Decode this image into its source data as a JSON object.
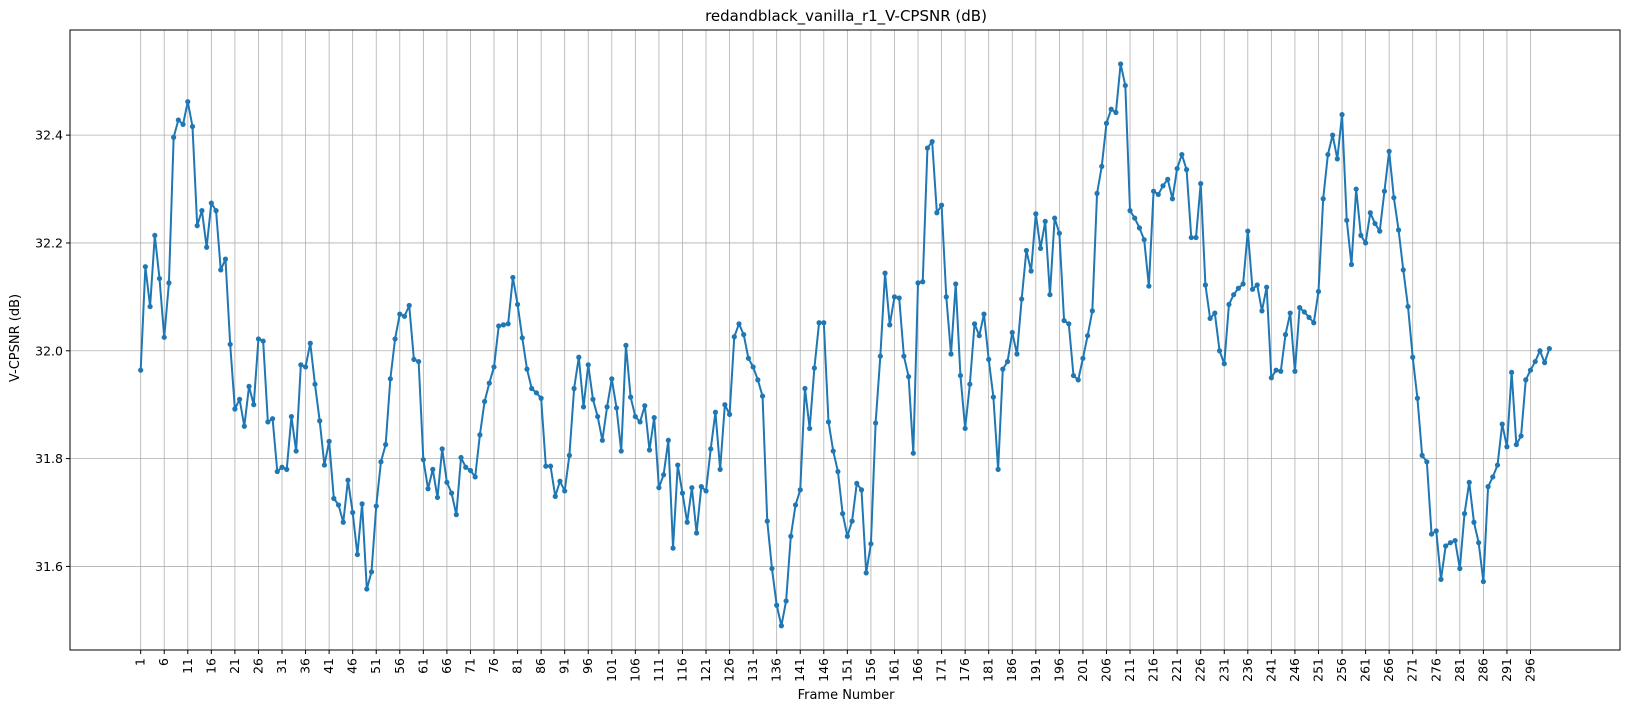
{
  "chart_data": {
    "type": "line",
    "title": "redandblack_vanilla_r1_V-CPSNR (dB)",
    "xlabel": "Frame Number",
    "ylabel": "V-CPSNR (dB)",
    "xlim": [
      -14,
      315
    ],
    "ylim": [
      31.445,
      32.595
    ],
    "yticks": [
      "31.6",
      "31.8",
      "32.0",
      "32.2",
      "32.4"
    ],
    "xticks": [
      "1",
      "6",
      "11",
      "16",
      "21",
      "26",
      "31",
      "36",
      "41",
      "46",
      "51",
      "56",
      "61",
      "66",
      "71",
      "76",
      "81",
      "86",
      "91",
      "96",
      "101",
      "106",
      "111",
      "116",
      "121",
      "126",
      "131",
      "136",
      "141",
      "146",
      "151",
      "156",
      "161",
      "166",
      "171",
      "176",
      "181",
      "186",
      "191",
      "196",
      "201",
      "206",
      "211",
      "216",
      "221",
      "226",
      "231",
      "236",
      "241",
      "246",
      "251",
      "256",
      "261",
      "266",
      "271",
      "276",
      "281",
      "286",
      "291",
      "296"
    ],
    "grid": true,
    "marker": "circle",
    "series": [
      {
        "color": "#1f77b4",
        "x_start": 1,
        "values": [
          31.964,
          32.156,
          32.082,
          32.214,
          32.134,
          32.025,
          32.126,
          32.396,
          32.428,
          32.42,
          32.462,
          32.416,
          32.232,
          32.26,
          32.192,
          32.274,
          32.26,
          32.15,
          32.17,
          32.012,
          31.892,
          31.91,
          31.86,
          31.934,
          31.9,
          32.022,
          32.018,
          31.868,
          31.874,
          31.776,
          31.784,
          31.78,
          31.878,
          31.814,
          31.974,
          31.97,
          32.014,
          31.938,
          31.87,
          31.788,
          31.832,
          31.726,
          31.714,
          31.682,
          31.76,
          31.7,
          31.622,
          31.716,
          31.558,
          31.59,
          31.712,
          31.794,
          31.826,
          31.948,
          32.022,
          32.068,
          32.064,
          32.084,
          31.984,
          31.98,
          31.798,
          31.744,
          31.78,
          31.728,
          31.818,
          31.756,
          31.736,
          31.696,
          31.802,
          31.784,
          31.778,
          31.766,
          31.844,
          31.906,
          31.94,
          31.97,
          32.046,
          32.048,
          32.05,
          32.136,
          32.086,
          32.024,
          31.966,
          31.93,
          31.922,
          31.912,
          31.786,
          31.786,
          31.73,
          31.758,
          31.74,
          31.806,
          31.93,
          31.988,
          31.896,
          31.974,
          31.91,
          31.878,
          31.834,
          31.896,
          31.948,
          31.894,
          31.814,
          32.01,
          31.914,
          31.878,
          31.868,
          31.898,
          31.816,
          31.876,
          31.746,
          31.77,
          31.834,
          31.634,
          31.788,
          31.736,
          31.682,
          31.746,
          31.662,
          31.748,
          31.74,
          31.818,
          31.886,
          31.78,
          31.9,
          31.882,
          32.026,
          32.05,
          32.03,
          31.986,
          31.97,
          31.946,
          31.916,
          31.684,
          31.596,
          31.528,
          31.49,
          31.536,
          31.656,
          31.714,
          31.742,
          31.93,
          31.856,
          31.968,
          32.052,
          32.052,
          31.868,
          31.814,
          31.776,
          31.698,
          31.656,
          31.684,
          31.754,
          31.742,
          31.588,
          31.642,
          31.866,
          31.99,
          32.144,
          32.048,
          32.1,
          32.098,
          31.99,
          31.952,
          31.81,
          32.126,
          32.128,
          32.376,
          32.388,
          32.256,
          32.27,
          32.1,
          31.994,
          32.124,
          31.954,
          31.856,
          31.938,
          32.05,
          32.028,
          32.068,
          31.984,
          31.914,
          31.78,
          31.966,
          31.98,
          32.034,
          31.994,
          32.096,
          32.186,
          32.148,
          32.254,
          32.19,
          32.24,
          32.104,
          32.246,
          32.218,
          32.056,
          32.05,
          31.954,
          31.946,
          31.986,
          32.028,
          32.074,
          32.292,
          32.342,
          32.422,
          32.448,
          32.442,
          32.532,
          32.492,
          32.26,
          32.246,
          32.228,
          32.206,
          32.12,
          32.296,
          32.29,
          32.306,
          32.318,
          32.282,
          32.338,
          32.364,
          32.336,
          32.21,
          32.21,
          32.31,
          32.122,
          32.06,
          32.07,
          32.0,
          31.976,
          32.086,
          32.104,
          32.116,
          32.124,
          32.222,
          32.114,
          32.122,
          32.074,
          32.118,
          31.95,
          31.964,
          31.962,
          32.03,
          32.07,
          31.962,
          32.08,
          32.072,
          32.062,
          32.052,
          32.11,
          32.282,
          32.364,
          32.4,
          32.356,
          32.438,
          32.242,
          32.16,
          32.3,
          32.214,
          32.2,
          32.256,
          32.236,
          32.222,
          32.296,
          32.37,
          32.284,
          32.224,
          32.15,
          32.082,
          31.988,
          31.912,
          31.806,
          31.794,
          31.66,
          31.666,
          31.576,
          31.638,
          31.644,
          31.648,
          31.596,
          31.698,
          31.756,
          31.682,
          31.644,
          31.572,
          31.748,
          31.766,
          31.788,
          31.864,
          31.822,
          31.96,
          31.826,
          31.842,
          31.946,
          31.964,
          31.98,
          32.0,
          31.978,
          32.004
        ]
      }
    ]
  }
}
